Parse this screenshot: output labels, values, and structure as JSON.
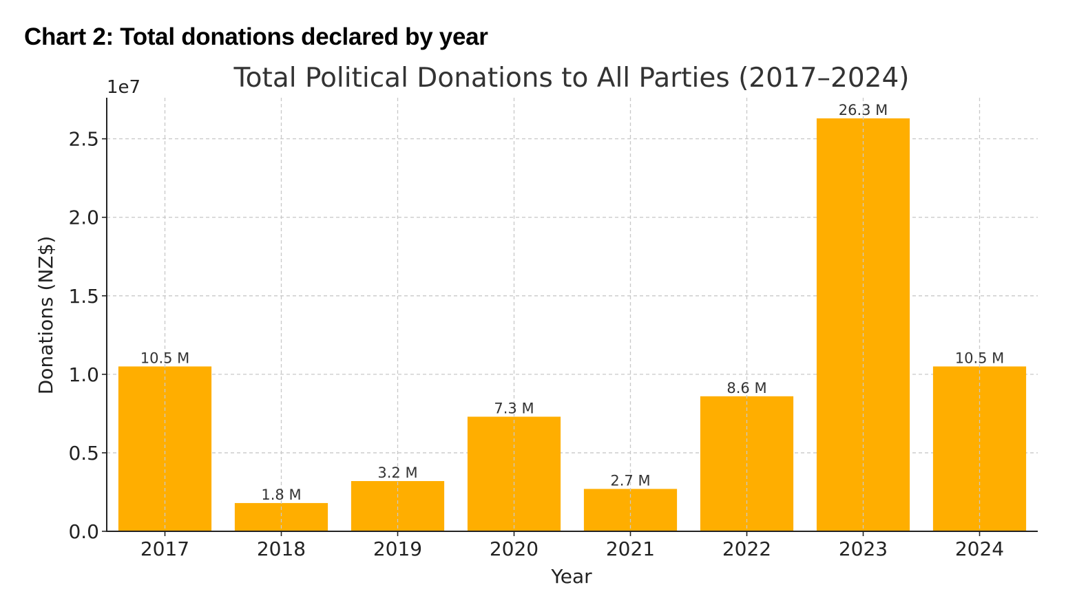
{
  "page": {
    "heading": "Chart 2: Total donations declared by year"
  },
  "chart_data": {
    "type": "bar",
    "title": "Total Political Donations to All Parties (2017–2024)",
    "xlabel": "Year",
    "ylabel": "Donations (NZ$)",
    "offset_label": "1e7",
    "categories": [
      "2017",
      "2018",
      "2019",
      "2020",
      "2021",
      "2022",
      "2023",
      "2024"
    ],
    "values": [
      10500000,
      1800000,
      3200000,
      7300000,
      2700000,
      8600000,
      26300000,
      10500000
    ],
    "value_labels": [
      "10.5 M",
      "1.8 M",
      "3.2 M",
      "7.3 M",
      "2.7 M",
      "8.6 M",
      "26.3 M",
      "10.5 M"
    ],
    "yticks": [
      0,
      5000000,
      10000000,
      15000000,
      20000000,
      25000000
    ],
    "ytick_labels": [
      "0.0",
      "0.5",
      "1.0",
      "1.5",
      "2.0",
      "2.5"
    ],
    "ylim": [
      0,
      27615000
    ],
    "grid": true,
    "bar_color": "#FFAE00",
    "grid_color": "#c8c8c8",
    "axis_color": "#222222",
    "text_color": "#333333"
  }
}
